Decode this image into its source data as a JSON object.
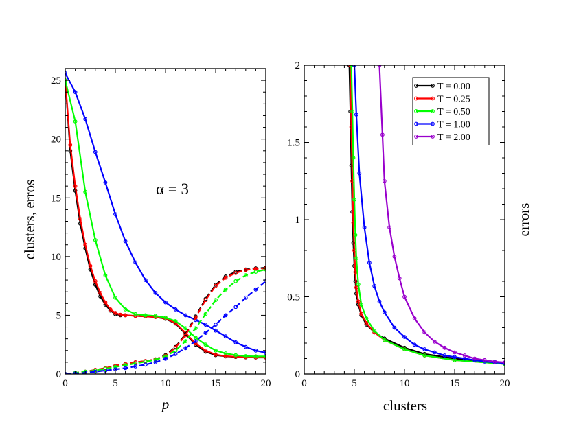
{
  "chart_data": [
    {
      "type": "line",
      "panel": "left",
      "title": "",
      "xlabel": "p",
      "ylabel": "clusters, erros",
      "xlim": [
        0,
        20
      ],
      "ylim": [
        0,
        26
      ],
      "xticks": [
        0,
        5,
        10,
        15,
        20
      ],
      "yticks": [
        0,
        5,
        10,
        15,
        20,
        25
      ],
      "annotation": "α = 3",
      "series": [
        {
          "name": "T = 0.00 clusters",
          "color": "#000000",
          "style": "solid",
          "x": [
            0,
            0.5,
            1,
            1.5,
            2,
            2.5,
            3,
            3.5,
            4,
            4.5,
            5,
            5.5,
            6,
            7,
            8,
            9,
            10,
            11,
            12,
            13,
            14,
            15,
            16,
            17,
            18,
            19,
            20
          ],
          "y": [
            25,
            19,
            15.6,
            12.8,
            10.7,
            8.9,
            7.6,
            6.6,
            5.9,
            5.4,
            5.1,
            5.0,
            5.0,
            4.95,
            4.9,
            4.85,
            4.7,
            4.3,
            3.4,
            2.5,
            1.9,
            1.6,
            1.5,
            1.45,
            1.42,
            1.4,
            1.4
          ]
        },
        {
          "name": "T = 0.25 clusters",
          "color": "#ff0000",
          "style": "solid",
          "x": [
            0,
            0.5,
            1,
            1.5,
            2,
            2.5,
            3,
            3.5,
            4,
            4.5,
            5,
            5.5,
            6,
            7,
            8,
            9,
            10,
            11,
            12,
            13,
            14,
            15,
            16,
            17,
            18,
            19,
            20
          ],
          "y": [
            25,
            19.5,
            16,
            13.2,
            11,
            9.2,
            7.9,
            6.9,
            6.1,
            5.5,
            5.2,
            5.05,
            5.0,
            4.95,
            4.9,
            4.85,
            4.72,
            4.35,
            3.5,
            2.6,
            2.0,
            1.65,
            1.52,
            1.47,
            1.44,
            1.42,
            1.42
          ]
        },
        {
          "name": "T = 0.50 clusters",
          "color": "#00ff00",
          "style": "solid",
          "x": [
            0,
            1,
            2,
            3,
            4,
            5,
            6,
            7,
            8,
            9,
            10,
            11,
            12,
            13,
            14,
            15,
            16,
            17,
            18,
            19,
            20
          ],
          "y": [
            25,
            21.5,
            15.5,
            11.4,
            8.4,
            6.5,
            5.5,
            5.1,
            5.0,
            4.95,
            4.8,
            4.5,
            3.9,
            3.1,
            2.5,
            2.0,
            1.75,
            1.6,
            1.52,
            1.5,
            1.5
          ]
        },
        {
          "name": "T = 1.00 clusters",
          "color": "#0000ff",
          "style": "solid",
          "x": [
            0,
            1,
            2,
            3,
            4,
            5,
            6,
            7,
            8,
            9,
            10,
            11,
            12,
            13,
            14,
            15,
            16,
            17,
            18,
            19,
            20
          ],
          "y": [
            25.6,
            24,
            21.7,
            18.9,
            16.3,
            13.6,
            11.3,
            9.5,
            8.0,
            6.9,
            6.1,
            5.5,
            5.0,
            4.6,
            4.2,
            3.7,
            3.2,
            2.7,
            2.3,
            2.0,
            1.8
          ]
        },
        {
          "name": "T = 0.00 errors",
          "color": "#000000",
          "style": "dashed",
          "x": [
            0,
            1,
            2,
            3,
            4,
            5,
            6,
            7,
            8,
            9,
            10,
            11,
            12,
            13,
            14,
            15,
            16,
            17,
            18,
            19,
            20
          ],
          "y": [
            0,
            0.1,
            0.2,
            0.35,
            0.5,
            0.7,
            0.85,
            1.0,
            1.1,
            1.25,
            1.6,
            2.3,
            3.4,
            4.9,
            6.4,
            7.6,
            8.3,
            8.7,
            8.9,
            9.0,
            9.05
          ]
        },
        {
          "name": "T = 0.25 errors",
          "color": "#ff0000",
          "style": "dashed",
          "x": [
            0,
            1,
            2,
            3,
            4,
            5,
            6,
            7,
            8,
            9,
            10,
            11,
            12,
            13,
            14,
            15,
            16,
            17,
            18,
            19,
            20
          ],
          "y": [
            0,
            0.1,
            0.2,
            0.35,
            0.5,
            0.7,
            0.85,
            1.0,
            1.1,
            1.25,
            1.55,
            2.25,
            3.3,
            4.8,
            6.3,
            7.5,
            8.2,
            8.6,
            8.85,
            8.95,
            9.0
          ]
        },
        {
          "name": "T = 0.50 errors",
          "color": "#00ff00",
          "style": "dashed",
          "x": [
            0,
            1,
            2,
            3,
            4,
            5,
            6,
            7,
            8,
            9,
            10,
            11,
            12,
            13,
            14,
            15,
            16,
            17,
            18,
            19,
            20
          ],
          "y": [
            0,
            0.1,
            0.2,
            0.3,
            0.45,
            0.6,
            0.75,
            0.9,
            1.05,
            1.2,
            1.5,
            2.0,
            2.8,
            3.9,
            5.1,
            6.3,
            7.2,
            7.9,
            8.4,
            8.7,
            8.9
          ]
        },
        {
          "name": "T = 1.00 errors",
          "color": "#0000ff",
          "style": "dashed",
          "x": [
            0,
            1,
            2,
            3,
            4,
            5,
            6,
            7,
            8,
            9,
            10,
            11,
            12,
            13,
            14,
            15,
            16,
            17,
            18,
            19,
            20
          ],
          "y": [
            0,
            0.05,
            0.1,
            0.2,
            0.3,
            0.4,
            0.5,
            0.65,
            0.8,
            1.0,
            1.3,
            1.7,
            2.2,
            2.8,
            3.5,
            4.2,
            5.0,
            5.7,
            6.5,
            7.2,
            7.9
          ]
        }
      ]
    },
    {
      "type": "line",
      "panel": "right",
      "title": "",
      "xlabel": "clusters",
      "ylabel": "errors",
      "xlim": [
        0,
        20
      ],
      "ylim": [
        0,
        2
      ],
      "xticks": [
        0,
        5,
        10,
        15,
        20
      ],
      "yticks": [
        0,
        0.5,
        1,
        1.5,
        2
      ],
      "ytick_labels": [
        "0",
        "0.5",
        "1",
        "1.5",
        "2"
      ],
      "legend_position": "top-right",
      "series": [
        {
          "name": "T = 0.00",
          "color": "#000000",
          "x": [
            4.5,
            4.6,
            4.7,
            4.8,
            4.9,
            5.0,
            5.1,
            5.2,
            5.4,
            5.7,
            6.2,
            7,
            8,
            10,
            12,
            15,
            20
          ],
          "y": [
            2.0,
            1.7,
            1.35,
            1.05,
            0.85,
            0.7,
            0.6,
            0.52,
            0.45,
            0.38,
            0.32,
            0.27,
            0.23,
            0.17,
            0.13,
            0.1,
            0.07
          ]
        },
        {
          "name": "T = 0.25",
          "color": "#ff0000",
          "x": [
            4.6,
            4.7,
            4.8,
            4.9,
            5.0,
            5.1,
            5.2,
            5.4,
            5.7,
            6.2,
            7,
            8,
            10,
            12,
            15,
            20
          ],
          "y": [
            2.0,
            1.6,
            1.25,
            0.98,
            0.8,
            0.66,
            0.56,
            0.47,
            0.39,
            0.33,
            0.27,
            0.22,
            0.16,
            0.12,
            0.09,
            0.065
          ]
        },
        {
          "name": "T = 0.50",
          "color": "#00ff00",
          "x": [
            4.7,
            4.8,
            4.9,
            5.0,
            5.1,
            5.2,
            5.4,
            5.7,
            6.2,
            7,
            8,
            10,
            12,
            15,
            20
          ],
          "y": [
            2.0,
            1.7,
            1.4,
            1.13,
            0.9,
            0.75,
            0.58,
            0.45,
            0.36,
            0.28,
            0.22,
            0.16,
            0.12,
            0.09,
            0.065
          ]
        },
        {
          "name": "T = 1.00",
          "color": "#0000ff",
          "x": [
            5.0,
            5.2,
            5.5,
            6,
            6.5,
            7,
            7.5,
            8,
            9,
            10,
            11,
            12,
            13,
            14,
            15,
            16,
            17,
            18,
            19,
            20
          ],
          "y": [
            2.0,
            1.68,
            1.3,
            0.95,
            0.72,
            0.57,
            0.47,
            0.4,
            0.3,
            0.24,
            0.19,
            0.16,
            0.14,
            0.12,
            0.11,
            0.1,
            0.09,
            0.08,
            0.075,
            0.07
          ]
        },
        {
          "name": "T = 2.00",
          "color": "#9900cc",
          "x": [
            7.5,
            7.8,
            8,
            8.5,
            9,
            9.5,
            10,
            11,
            12,
            13,
            14,
            15,
            16,
            17,
            18,
            19,
            20
          ],
          "y": [
            2.0,
            1.55,
            1.25,
            0.95,
            0.76,
            0.62,
            0.5,
            0.36,
            0.27,
            0.21,
            0.17,
            0.14,
            0.12,
            0.1,
            0.09,
            0.08,
            0.075
          ]
        }
      ]
    }
  ]
}
